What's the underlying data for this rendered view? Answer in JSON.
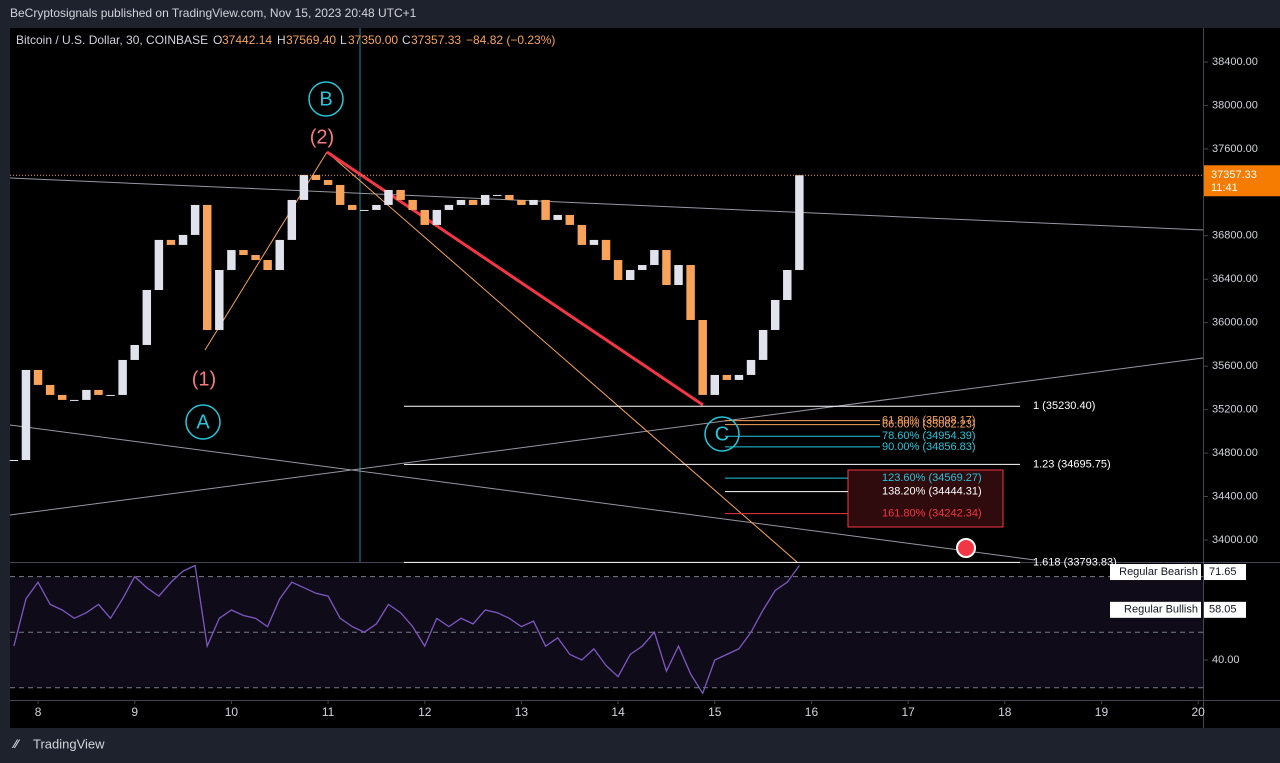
{
  "header": {
    "publisher": "BeCryptosignals published on TradingView.com, Nov 15, 2023 20:48 UTC+1",
    "footer": "TradingView"
  },
  "chart_data": [
    {
      "type": "candlestick",
      "title": "Bitcoin / U.S. Dollar, 30, COINBASE",
      "ohlc": [
        {
          "key": "O",
          "value": "37442.14"
        },
        {
          "key": "H",
          "value": "37569.40"
        },
        {
          "key": "L",
          "value": "37350.00"
        },
        {
          "key": "C",
          "value": "37357.33"
        }
      ],
      "change": "−84.82 (−0.23%)",
      "x": [
        7.75,
        7.875,
        8,
        8.125,
        8.25,
        8.375,
        8.5,
        8.625,
        8.75,
        8.875,
        9,
        9.125,
        9.25,
        9.375,
        9.5,
        9.625,
        9.75,
        9.875,
        10,
        10.125,
        10.25,
        10.375,
        10.5,
        10.625,
        10.75,
        10.875,
        11,
        11.125,
        11.25,
        11.375,
        11.5,
        11.625,
        11.75,
        11.875,
        12,
        12.125,
        12.25,
        12.375,
        12.5,
        12.625,
        12.75,
        12.875,
        13,
        13.125,
        13.25,
        13.375,
        13.5,
        13.625,
        13.75,
        13.875,
        14,
        14.125,
        14.25,
        14.375,
        14.5,
        14.625,
        14.75,
        14.875,
        15,
        15.125,
        15.25,
        15.375,
        15.5,
        15.625,
        15.75,
        15.875
      ],
      "values": [
        34736,
        35565,
        35427,
        35335,
        35289,
        35289,
        35381,
        35335,
        35335,
        35657,
        35795,
        36301,
        36762,
        36716,
        36808,
        37084,
        35933,
        36485,
        36669,
        36623,
        36577,
        36485,
        36762,
        37130,
        37360,
        37314,
        37268,
        37084,
        37038,
        37038,
        37084,
        37222,
        37130,
        37038,
        36900,
        37038,
        37084,
        37130,
        37084,
        37176,
        37176,
        37130,
        37084,
        37130,
        36946,
        36992,
        36900,
        36716,
        36762,
        36577,
        36393,
        36485,
        36531,
        36669,
        36347,
        36531,
        36025,
        35335,
        35519,
        35473,
        35519,
        35657,
        35933,
        36209,
        36485,
        37357.33
      ],
      "up_color": "#e0e3eb",
      "down_color": "#f7a35c",
      "xlim": [
        7.71,
        20.05
      ],
      "xticks": [
        8,
        9,
        10,
        11,
        12,
        13,
        14,
        15,
        16,
        17,
        18,
        19,
        20
      ],
      "ylim": [
        33797,
        38713
      ],
      "yticks": [
        {
          "value": 34000,
          "label": "34000.00"
        },
        {
          "value": 34400,
          "label": "34400.00"
        },
        {
          "value": 34800,
          "label": "34800.00"
        },
        {
          "value": 35200,
          "label": "35200.00"
        },
        {
          "value": 35600,
          "label": "35600.00"
        },
        {
          "value": 36000,
          "label": "36000.00"
        },
        {
          "value": 36400,
          "label": "36400.00"
        },
        {
          "value": 36800,
          "label": "36800.00"
        },
        {
          "value": 37200,
          "label": "37200.00"
        },
        {
          "value": 37600,
          "label": "37600.00"
        },
        {
          "value": 38000,
          "label": "38000.00"
        },
        {
          "value": 38400,
          "label": "38400.00"
        }
      ],
      "last_price": {
        "value": 37357.33,
        "label": "37357.33"
      },
      "countdown": "11:41",
      "wave_labels": [
        {
          "text": "(1)",
          "color": "#f77c80"
        },
        {
          "text": "(2)",
          "color": "#f77c80"
        },
        {
          "text": "A",
          "color": "#26c6da"
        },
        {
          "text": "B",
          "color": "#26c6da"
        },
        {
          "text": "C",
          "color": "#26c6da"
        }
      ],
      "extension_levels": [
        {
          "label": "1 (35230.40)",
          "value": 35230.4
        },
        {
          "label": "1.23 (34695.75)",
          "value": 34695.75
        },
        {
          "label": "1.618 (33793.83)",
          "value": 33793.83
        }
      ],
      "fib_levels": [
        {
          "label": "61.80% (35098.17)",
          "value": 35098.17,
          "color": "#f7a35c"
        },
        {
          "label": "66.00% (35062.23)",
          "value": 35062.23,
          "color": "#f7a35c"
        },
        {
          "label": "78.60% (34954.39)",
          "value": 34954.39,
          "color": "#26c6da"
        },
        {
          "label": "90.00% (34856.83)",
          "value": 34856.83,
          "color": "#26c6da"
        },
        {
          "label": "123.60% (34569.27)",
          "value": 34569.27,
          "color": "#26c6da"
        },
        {
          "label": "138.20% (34444.31)",
          "value": 34444.31,
          "color": "#ffffff"
        },
        {
          "label": "161.80% (34242.34)",
          "value": 34242.34,
          "color": "#f23645"
        }
      ]
    },
    {
      "type": "line",
      "x": [
        7.75,
        7.875,
        8,
        8.125,
        8.25,
        8.375,
        8.5,
        8.625,
        8.75,
        8.875,
        9,
        9.125,
        9.25,
        9.375,
        9.5,
        9.625,
        9.75,
        9.875,
        10,
        10.125,
        10.25,
        10.375,
        10.5,
        10.625,
        10.75,
        10.875,
        11,
        11.125,
        11.25,
        11.375,
        11.5,
        11.625,
        11.75,
        11.875,
        12,
        12.125,
        12.25,
        12.375,
        12.5,
        12.625,
        12.75,
        12.875,
        13,
        13.125,
        13.25,
        13.375,
        13.5,
        13.625,
        13.75,
        13.875,
        14,
        14.125,
        14.25,
        14.375,
        14.5,
        14.625,
        14.75,
        14.875,
        15,
        15.125,
        15.25,
        15.375,
        15.5,
        15.625,
        15.75,
        15.875
      ],
      "values": [
        45,
        62,
        68,
        60,
        58,
        55,
        57,
        60,
        55,
        62,
        70,
        66,
        63,
        68,
        72,
        74,
        45,
        55,
        58,
        56,
        55,
        52,
        62,
        68,
        66,
        64,
        63,
        55,
        52,
        50,
        53,
        60,
        57,
        52,
        45,
        55,
        52,
        55,
        53,
        58,
        57,
        55,
        52,
        54,
        45,
        48,
        42,
        40,
        44,
        38,
        34,
        42,
        45,
        50,
        36,
        45,
        35,
        28,
        40,
        42,
        44,
        50,
        58,
        65,
        68,
        74
      ],
      "color": "#7e57c2",
      "ylim": [
        25.6,
        74.9
      ],
      "yticks": [
        {
          "value": 40,
          "label": "40.00"
        }
      ],
      "bands": [
        30,
        50,
        70
      ],
      "markers": [
        {
          "text": "Regular Bearish",
          "value": {
            "value": 71.65,
            "label": "71.65"
          }
        },
        {
          "text": "Regular Bullish",
          "value": {
            "value": 58.05,
            "label": "58.05"
          }
        }
      ]
    }
  ]
}
